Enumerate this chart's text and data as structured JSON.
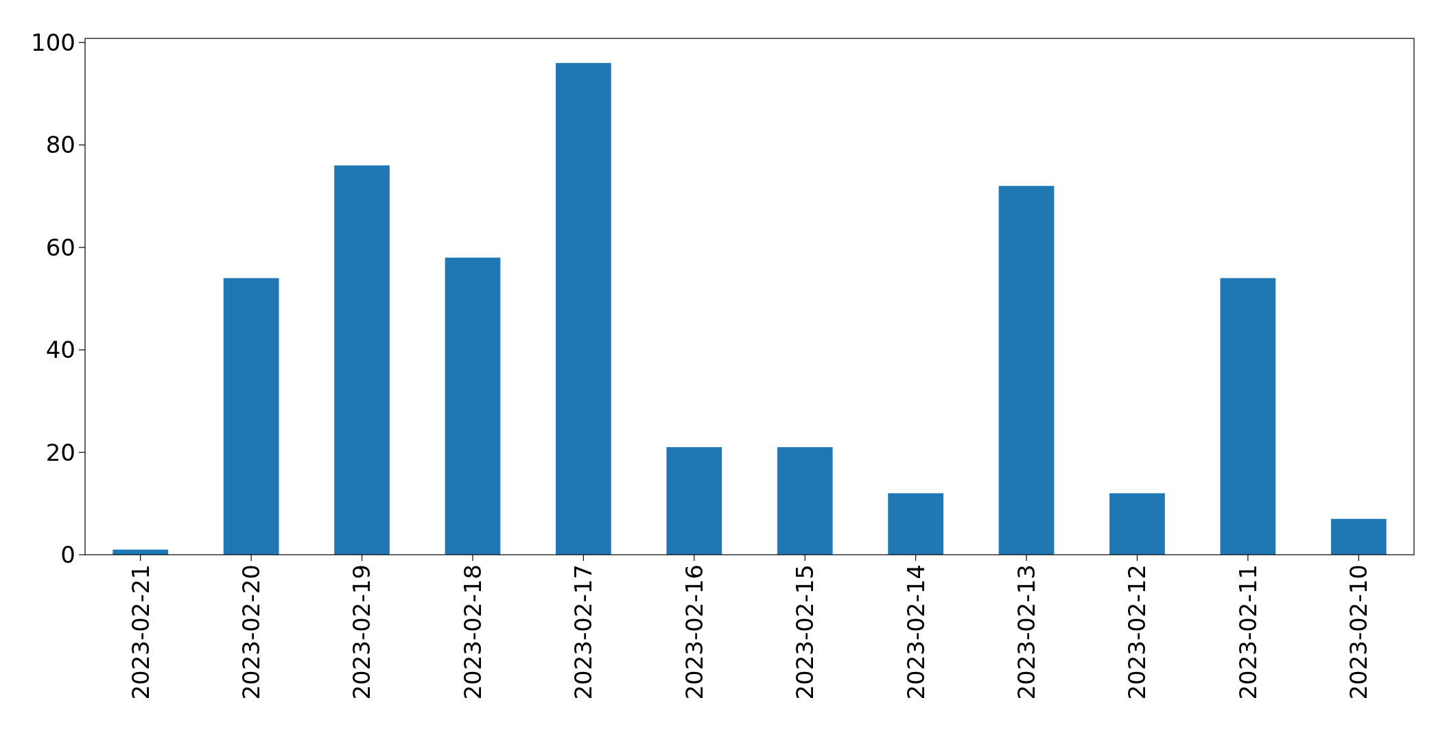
{
  "chart_data": {
    "type": "bar",
    "categories": [
      "2023-02-21",
      "2023-02-20",
      "2023-02-19",
      "2023-02-18",
      "2023-02-17",
      "2023-02-16",
      "2023-02-15",
      "2023-02-14",
      "2023-02-13",
      "2023-02-12",
      "2023-02-11",
      "2023-02-10"
    ],
    "values": [
      1,
      54,
      76,
      58,
      96,
      21,
      21,
      12,
      72,
      12,
      54,
      7
    ],
    "color": "#1f77b4",
    "ylim": [
      0,
      100.8
    ],
    "yticks": [
      0,
      20,
      40,
      60,
      80,
      100
    ]
  }
}
